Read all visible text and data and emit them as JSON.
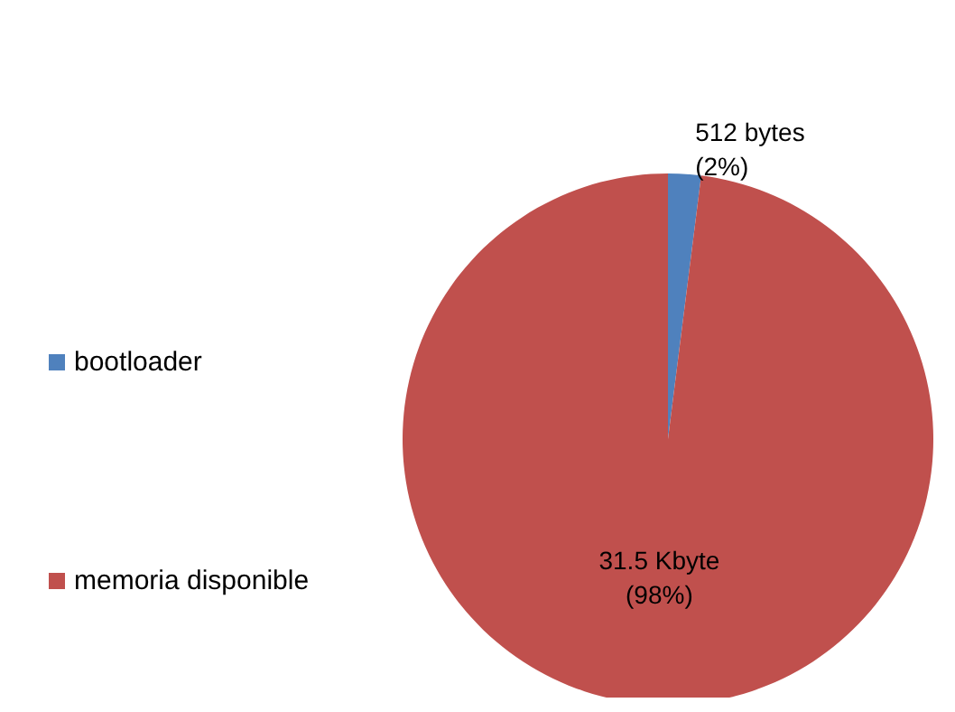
{
  "chart_data": {
    "type": "pie",
    "categories": [
      "bootloader",
      "memoria disponible"
    ],
    "values": [
      2,
      98
    ],
    "colors": [
      "#4f81bd",
      "#c0504d"
    ],
    "value_labels": [
      "512 bytes\n(2%)",
      "31.5 Kbyte\n(98%)"
    ],
    "legend": "left"
  }
}
